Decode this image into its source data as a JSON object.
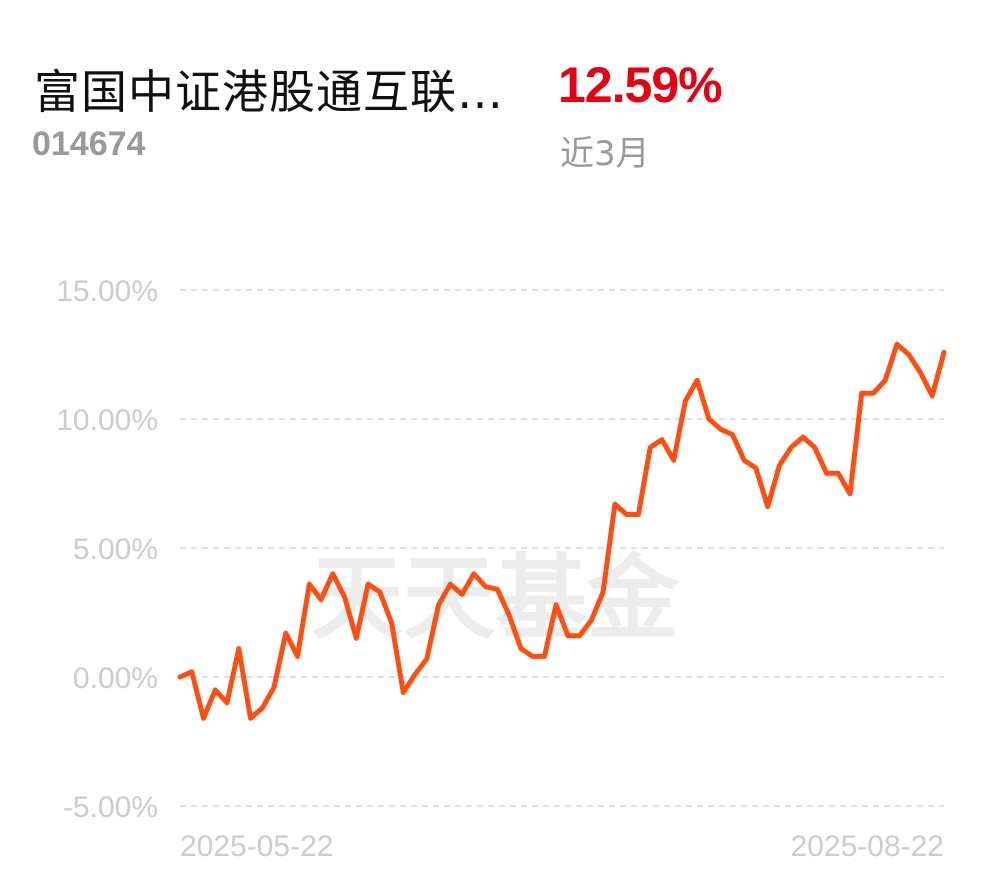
{
  "header": {
    "fund_name": "富国中证港股通互联…",
    "fund_code": "014674",
    "return_value": "12.59%",
    "period_label": "近3月"
  },
  "watermark": "天天基金",
  "colors": {
    "line": "#ff4e12",
    "return_positive": "#e60012",
    "grid": "#e0e0e0",
    "axis_text": "#cccccc"
  },
  "chart_data": {
    "type": "line",
    "title": "",
    "xlabel": "",
    "ylabel": "",
    "ylim": [
      -5,
      15
    ],
    "y_ticks": [
      15,
      10,
      5,
      0,
      -5
    ],
    "y_tick_labels": [
      "15.00%",
      "10.00%",
      "5.00%",
      "0.00%",
      "-5.00%"
    ],
    "x_tick_labels": [
      "2025-05-22",
      "2025-08-22"
    ],
    "grid": true,
    "series": [
      {
        "values": [
          0.0,
          0.2,
          -1.6,
          -0.5,
          -1.0,
          1.1,
          -1.6,
          -1.2,
          -0.4,
          1.7,
          0.8,
          3.6,
          3.0,
          4.0,
          3.1,
          1.5,
          3.6,
          3.3,
          2.1,
          -0.6,
          0.1,
          0.7,
          2.8,
          3.6,
          3.2,
          4.0,
          3.5,
          3.4,
          2.4,
          1.1,
          0.8,
          0.8,
          2.8,
          1.6,
          1.6,
          2.2,
          3.3,
          6.7,
          6.3,
          6.3,
          8.9,
          9.2,
          8.4,
          10.7,
          11.5,
          10.0,
          9.6,
          9.4,
          8.4,
          8.1,
          6.6,
          8.2,
          8.9,
          9.3,
          8.9,
          7.9,
          7.9,
          7.1,
          11.0,
          11.0,
          11.5,
          12.9,
          12.5,
          11.8,
          10.9,
          12.59
        ]
      }
    ]
  }
}
